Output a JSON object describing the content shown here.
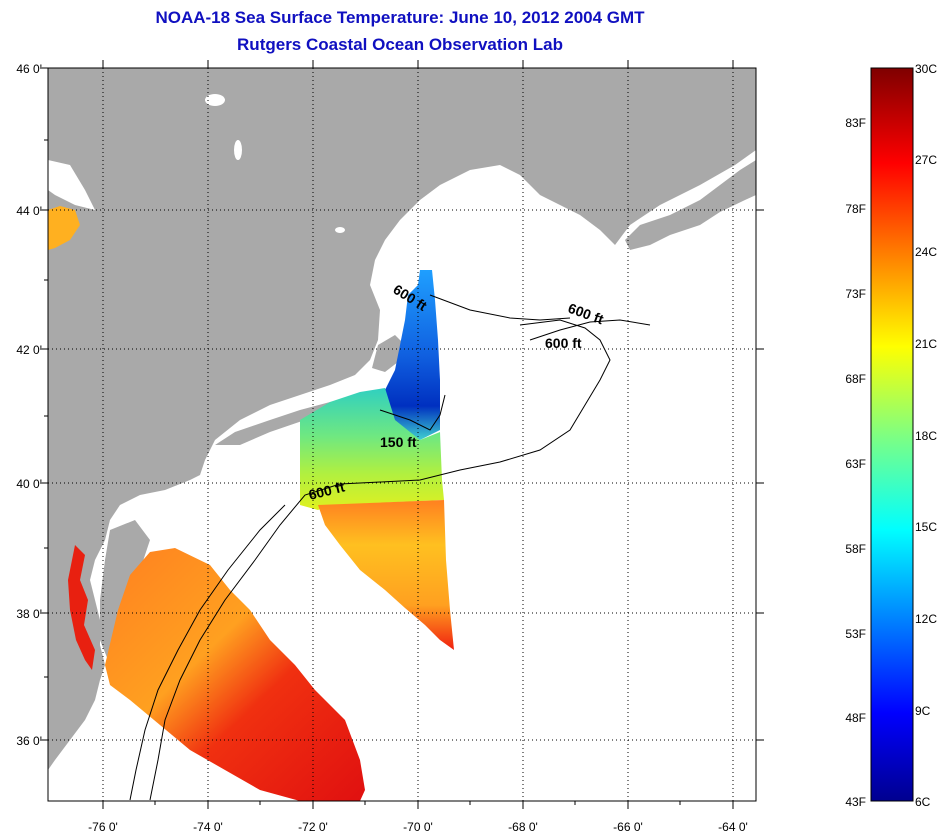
{
  "title": {
    "line1": "NOAA-18 Sea Surface Temperature:  June 10, 2012 2004 GMT",
    "line2": "Rutgers Coastal Ocean Observation Lab"
  },
  "axes": {
    "lat_labels": [
      "46 0'",
      "44 0'",
      "42 0'",
      "40 0'",
      "38 0'",
      "36 0'"
    ],
    "lon_labels": [
      "-76 0'",
      "-74 0'",
      "-72 0'",
      "-70 0'",
      "-68 0'",
      "-66 0'",
      "-64 0'"
    ]
  },
  "contours": {
    "labels": [
      "600 ft",
      "600 ft",
      "600 ft",
      "150 ft",
      "600 ft"
    ]
  },
  "colorbar": {
    "fahrenheit": [
      "83F",
      "78F",
      "73F",
      "68F",
      "63F",
      "58F",
      "53F",
      "48F",
      "43F"
    ],
    "celsius": [
      "30C",
      "27C",
      "24C",
      "21C",
      "18C",
      "15C",
      "12C",
      "9C",
      "6C"
    ],
    "range_c": [
      6,
      30
    ]
  },
  "colors": {
    "land": "#a9a9a9",
    "ocean": "#ffffff",
    "title": "#1010c0",
    "cold": "#00008f",
    "warm": "#7f0000"
  }
}
